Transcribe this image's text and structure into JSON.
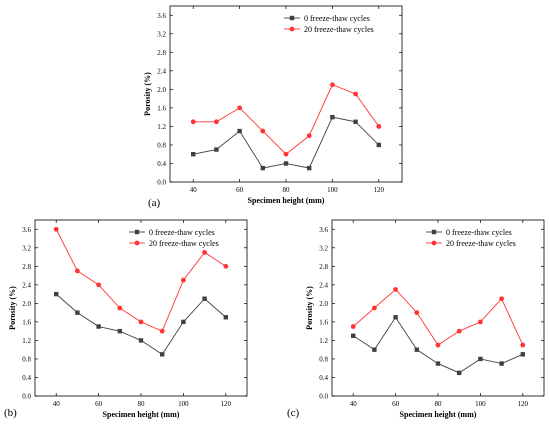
{
  "chart_data": [
    {
      "type": "line",
      "panel_label": "(a)",
      "xlabel": "Specimen height (mm)",
      "ylabel": "Porosity (%)",
      "x": [
        40,
        50,
        60,
        70,
        80,
        90,
        100,
        110,
        120
      ],
      "x_ticks": [
        "40",
        "60",
        "80",
        "100",
        "120"
      ],
      "y_ticks": [
        "0.0",
        "0.4",
        "0.8",
        "1.2",
        "1.6",
        "2.0",
        "2.4",
        "2.8",
        "3.2",
        "3.6"
      ],
      "xlim": [
        30,
        130
      ],
      "ylim": [
        0,
        3.8
      ],
      "legend_position": "top-right",
      "series": [
        {
          "name": "0 freeze-thaw cycles",
          "color": "#404040",
          "marker": "square",
          "values": [
            0.6,
            0.7,
            1.1,
            0.3,
            0.4,
            0.3,
            1.4,
            1.3,
            0.8
          ]
        },
        {
          "name": "20 freeze-thaw cycles",
          "color": "#ff3333",
          "marker": "circle",
          "values": [
            1.3,
            1.3,
            1.6,
            1.1,
            0.6,
            1.0,
            2.1,
            1.9,
            1.2
          ]
        }
      ]
    },
    {
      "type": "line",
      "panel_label": "(b)",
      "xlabel": "Specimen height (mm)",
      "ylabel": "Porosity (%)",
      "x": [
        40,
        50,
        60,
        70,
        80,
        90,
        100,
        110,
        120
      ],
      "x_ticks": [
        "40",
        "60",
        "80",
        "100",
        "120"
      ],
      "y_ticks": [
        "0.0",
        "0.4",
        "0.8",
        "1.2",
        "1.6",
        "2.0",
        "2.4",
        "2.8",
        "3.2",
        "3.6"
      ],
      "xlim": [
        30,
        130
      ],
      "ylim": [
        0,
        3.8
      ],
      "legend_position": "top-right",
      "series": [
        {
          "name": "0 freeze-thaw cycles",
          "color": "#404040",
          "marker": "square",
          "values": [
            2.2,
            1.8,
            1.5,
            1.4,
            1.2,
            0.9,
            1.6,
            2.1,
            1.7
          ]
        },
        {
          "name": "20 freeze-thaw cycles",
          "color": "#ff3333",
          "marker": "circle",
          "values": [
            3.6,
            2.7,
            2.4,
            1.9,
            1.6,
            1.4,
            2.5,
            3.1,
            2.8
          ]
        }
      ]
    },
    {
      "type": "line",
      "panel_label": "(c)",
      "xlabel": "Specimen height (mm)",
      "ylabel": "Porosity (%)",
      "x": [
        40,
        50,
        60,
        70,
        80,
        90,
        100,
        110,
        120
      ],
      "x_ticks": [
        "40",
        "60",
        "80",
        "100",
        "120"
      ],
      "y_ticks": [
        "0.0",
        "0.4",
        "0.8",
        "1.2",
        "1.6",
        "2.0",
        "2.4",
        "2.8",
        "3.2",
        "3.6"
      ],
      "xlim": [
        30,
        130
      ],
      "ylim": [
        0,
        3.8
      ],
      "legend_position": "top-right",
      "series": [
        {
          "name": "0 freeze-thaw cycles",
          "color": "#404040",
          "marker": "square",
          "values": [
            1.3,
            1.0,
            1.7,
            1.0,
            0.7,
            0.5,
            0.8,
            0.7,
            0.9
          ]
        },
        {
          "name": "20 freeze-thaw cycles",
          "color": "#ff3333",
          "marker": "circle",
          "values": [
            1.5,
            1.9,
            2.3,
            1.8,
            1.1,
            1.4,
            1.6,
            2.1,
            1.1
          ]
        }
      ]
    }
  ]
}
